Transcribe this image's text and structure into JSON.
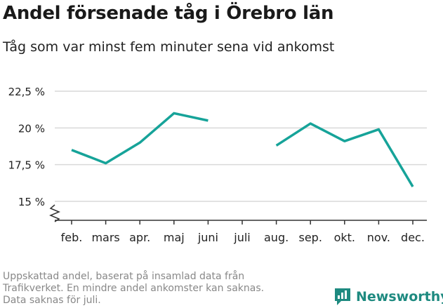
{
  "chart_data": {
    "type": "line",
    "title": "Andel försenade tåg i Örebro län",
    "subtitle": "Tåg som var minst fem minuter sena vid ankomst",
    "categories": [
      "feb.",
      "mars",
      "apr.",
      "maj",
      "juni",
      "juli",
      "aug.",
      "sep.",
      "okt.",
      "nov.",
      "dec."
    ],
    "series": [
      {
        "values": [
          18.5,
          17.6,
          19.0,
          21.0,
          20.5,
          null,
          18.8,
          20.3,
          19.1,
          19.9,
          16.0
        ]
      }
    ],
    "y_ticks": [
      15,
      17.5,
      20,
      22.5
    ],
    "y_tick_labels": [
      "15 %",
      "17,5 %",
      "20 %",
      "22,5 %"
    ],
    "ylim": [
      14.2,
      23.0
    ],
    "y_axis_break": true,
    "grid": true,
    "line_color": "#16a399"
  },
  "footnote": [
    "Uppskattad andel, baserat på insamlad data från",
    "Trafikverket. En mindre andel ankomster kan saknas.",
    "Data saknas för juli."
  ],
  "brand": {
    "name": "Newsworthy",
    "icon": "newsworthy-logo-icon",
    "color": "#1e8a80"
  }
}
